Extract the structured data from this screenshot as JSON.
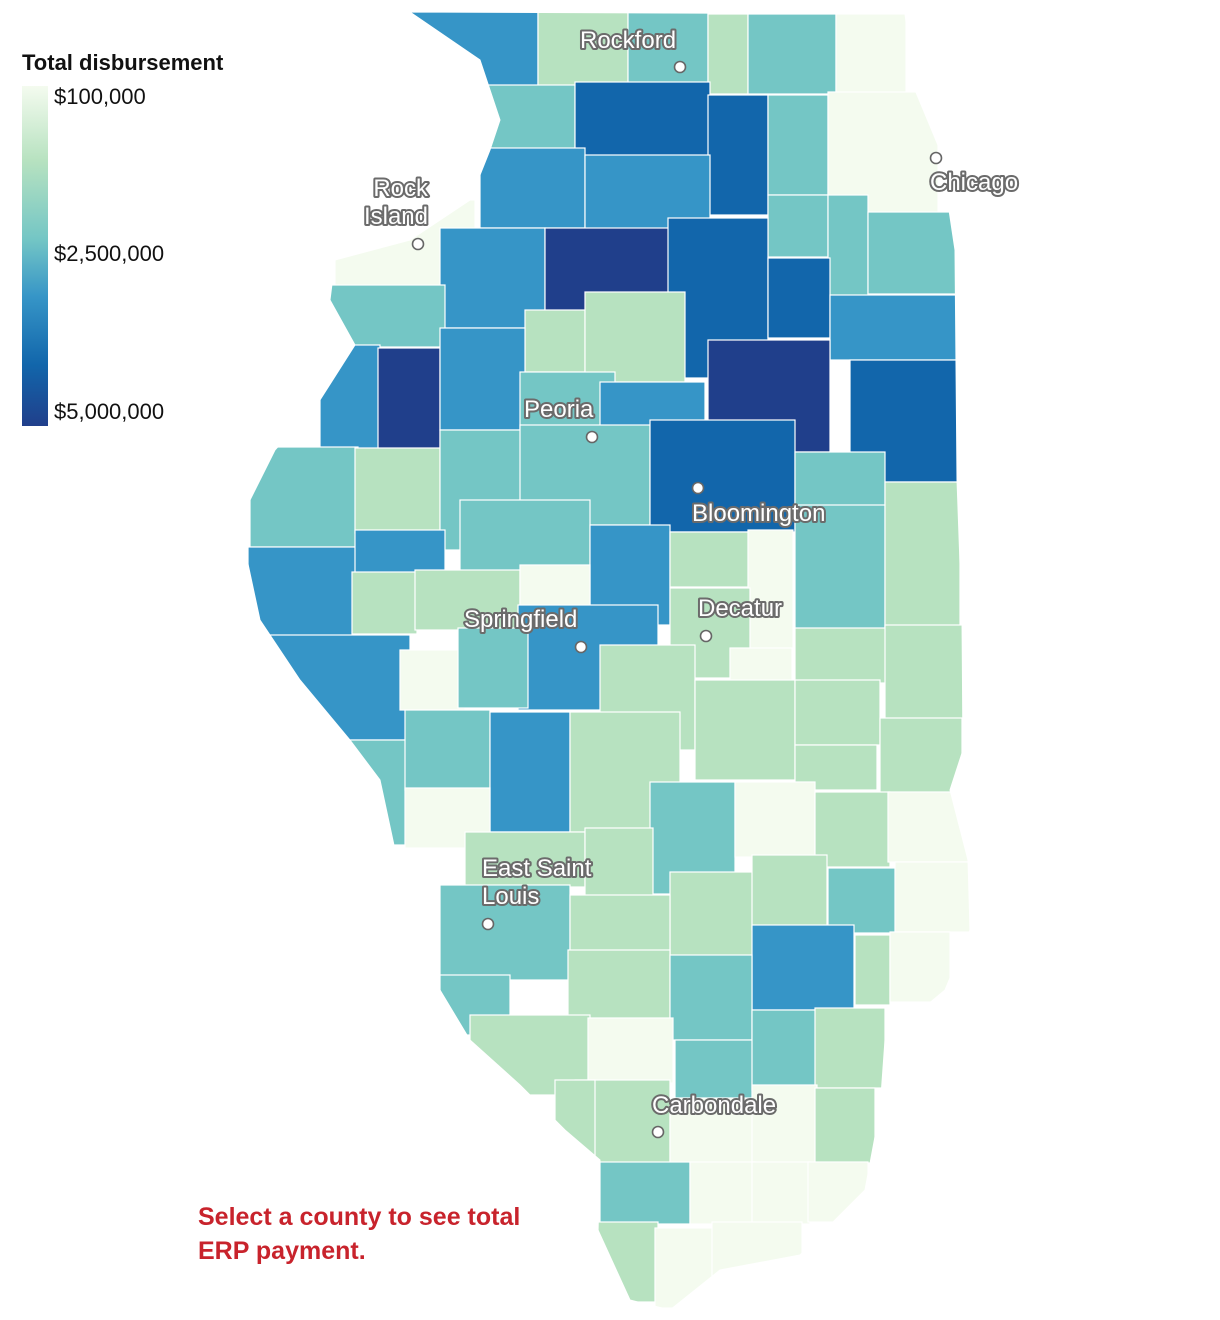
{
  "legend": {
    "title": "Total disbursement",
    "ticks": [
      "$100,000",
      "$2,500,000",
      "$5,000,000"
    ],
    "colors": [
      "#f4fbef",
      "#b7e2c0",
      "#74c6c5",
      "#3695c7",
      "#1266ab",
      "#203f8b"
    ]
  },
  "cities": [
    {
      "name": "Rockford",
      "lines": [
        "Rockford"
      ]
    },
    {
      "name": "Rock Island",
      "lines": [
        "Rock",
        "Island"
      ]
    },
    {
      "name": "Chicago",
      "lines": [
        "Chicago"
      ]
    },
    {
      "name": "Peoria",
      "lines": [
        "Peoria"
      ]
    },
    {
      "name": "Bloomington",
      "lines": [
        "Bloomington"
      ]
    },
    {
      "name": "Decatur",
      "lines": [
        "Decatur"
      ]
    },
    {
      "name": "Springfield",
      "lines": [
        "Springfield"
      ]
    },
    {
      "name": "East Saint Louis",
      "lines": [
        "East Saint",
        "Louis"
      ]
    },
    {
      "name": "Carbondale",
      "lines": [
        "Carbondale"
      ]
    }
  ],
  "cta_text": "Select a county to see total ERP payment."
}
